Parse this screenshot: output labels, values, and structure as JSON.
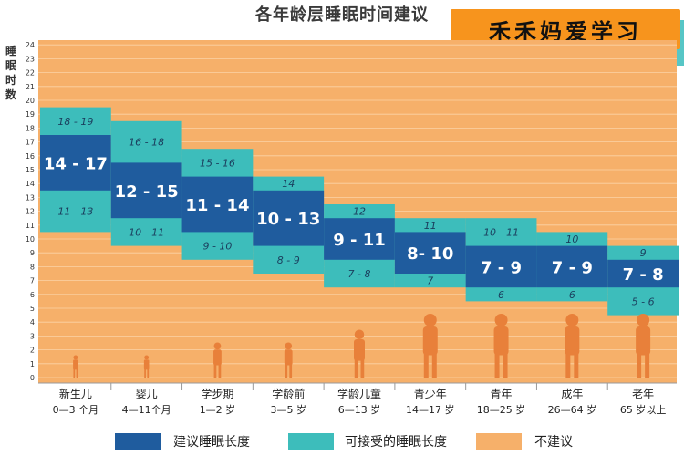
{
  "chart_data": {
    "type": "bar",
    "title": "各年龄层睡眠时间建议",
    "ylabel": "睡眠时数",
    "ylim": [
      0,
      24
    ],
    "yticks": [
      0,
      1,
      2,
      3,
      4,
      5,
      6,
      7,
      8,
      9,
      10,
      11,
      12,
      13,
      14,
      15,
      16,
      17,
      18,
      19,
      20,
      21,
      22,
      23,
      24
    ],
    "groups": [
      {
        "name": "新生儿",
        "range": "0—3 个月",
        "acceptable_low": [
          11,
          13
        ],
        "recommended": [
          14,
          17
        ],
        "acceptable_high": [
          18,
          19
        ],
        "low_label": "11 - 13",
        "rec_label": "14 - 17",
        "high_label": "18 - 19"
      },
      {
        "name": "婴儿",
        "range": "4—11个月",
        "acceptable_low": [
          10,
          11
        ],
        "recommended": [
          12,
          15
        ],
        "acceptable_high": [
          16,
          18
        ],
        "low_label": "10 - 11",
        "rec_label": "12 - 15",
        "high_label": "16 - 18"
      },
      {
        "name": "学步期",
        "range": "1—2 岁",
        "acceptable_low": [
          9,
          10
        ],
        "recommended": [
          11,
          14
        ],
        "acceptable_high": [
          15,
          16
        ],
        "low_label": "9 - 10",
        "rec_label": "11 - 14",
        "high_label": "15 - 16"
      },
      {
        "name": "学龄前",
        "range": "3—5 岁",
        "acceptable_low": [
          8,
          9
        ],
        "recommended": [
          10,
          13
        ],
        "acceptable_high": [
          14,
          14
        ],
        "low_label": "8 - 9",
        "rec_label": "10 - 13",
        "high_label": "14"
      },
      {
        "name": "学龄儿童",
        "range": "6—13 岁",
        "acceptable_low": [
          7,
          8
        ],
        "recommended": [
          9,
          11
        ],
        "acceptable_high": [
          12,
          12
        ],
        "low_label": "7 - 8",
        "rec_label": "9 - 11",
        "high_label": "12"
      },
      {
        "name": "青少年",
        "range": "14—17 岁",
        "acceptable_low": [
          7,
          7
        ],
        "recommended": [
          8,
          10
        ],
        "acceptable_high": [
          11,
          11
        ],
        "low_label": "7",
        "rec_label": "8- 10",
        "high_label": "11"
      },
      {
        "name": "青年",
        "range": "18—25 岁",
        "acceptable_low": [
          6,
          6
        ],
        "recommended": [
          7,
          9
        ],
        "acceptable_high": [
          10,
          11
        ],
        "low_label": "6",
        "rec_label": "7 - 9",
        "high_label": "10 - 11"
      },
      {
        "name": "成年",
        "range": "26—64 岁",
        "acceptable_low": [
          6,
          6
        ],
        "recommended": [
          7,
          9
        ],
        "acceptable_high": [
          10,
          10
        ],
        "low_label": "6",
        "rec_label": "7 - 9",
        "high_label": "10"
      },
      {
        "name": "老年",
        "range": "65 岁以上",
        "acceptable_low": [
          5,
          6
        ],
        "recommended": [
          7,
          8
        ],
        "acceptable_high": [
          9,
          9
        ],
        "low_label": "5 - 6",
        "rec_label": "7 - 8",
        "high_label": "9"
      }
    ],
    "legend": [
      {
        "label": "建议睡眠长度",
        "color": "#1f5c9e"
      },
      {
        "label": "可接受的睡眠长度",
        "color": "#3dbdbb"
      },
      {
        "label": "不建议",
        "color": "#f6b06a"
      }
    ],
    "colors": {
      "background": "#f6b06a",
      "recommended": "#1f5c9e",
      "acceptable": "#3dbdbb",
      "figure": "#e8803a"
    }
  },
  "watermark": "禾禾妈爱学习"
}
